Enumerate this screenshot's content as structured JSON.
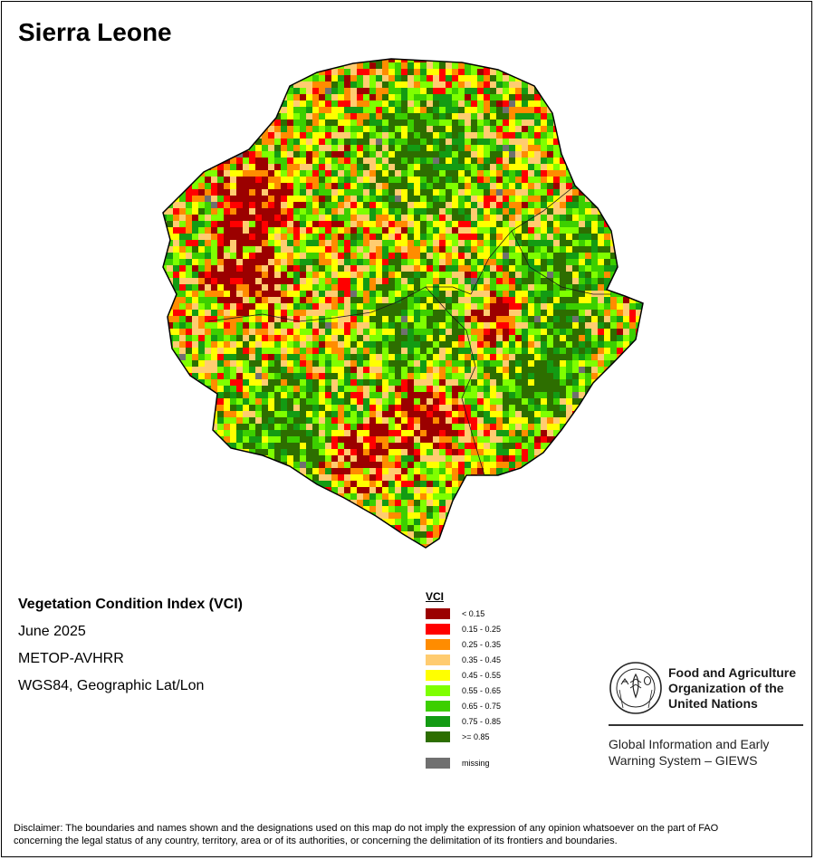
{
  "map": {
    "title": "Sierra Leone"
  },
  "info": {
    "heading": "Vegetation Condition Index (VCI)",
    "date": "June 2025",
    "sensor": "METOP-AVHRR",
    "projection": "WGS84, Geographic Lat/Lon"
  },
  "legend": {
    "title": "VCI",
    "classes": [
      {
        "label": "< 0.15",
        "color": "#9b0000"
      },
      {
        "label": "0.15 - 0.25",
        "color": "#ff0000"
      },
      {
        "label": "0.25 - 0.35",
        "color": "#ff8c00"
      },
      {
        "label": "0.35 - 0.45",
        "color": "#ffcc70"
      },
      {
        "label": "0.45 - 0.55",
        "color": "#ffff00"
      },
      {
        "label": "0.55 - 0.65",
        "color": "#7fff00"
      },
      {
        "label": "0.65 - 0.75",
        "color": "#3ccf00"
      },
      {
        "label": "0.75 - 0.85",
        "color": "#139b13"
      },
      {
        "label": ">= 0.85",
        "color": "#2d6e00"
      }
    ],
    "missing": {
      "label": "missing",
      "color": "#707070"
    }
  },
  "logo": {
    "name": "fao-logo",
    "line1": "Food and Agriculture",
    "line2": "Organization of the",
    "line3": "United Nations"
  },
  "giews": {
    "line1": "Global Information and Early",
    "line2": "Warning System – GIEWS"
  },
  "disclaimer": {
    "line1": "Disclaimer: The boundaries and names shown and the designations used on this map do not imply the expression of any opinion whatsoever on the part of FAO",
    "line2": "concerning the legal status of any country, territory, area or of its authorities, or concerning the delimitation of its frontiers and boundaries."
  }
}
